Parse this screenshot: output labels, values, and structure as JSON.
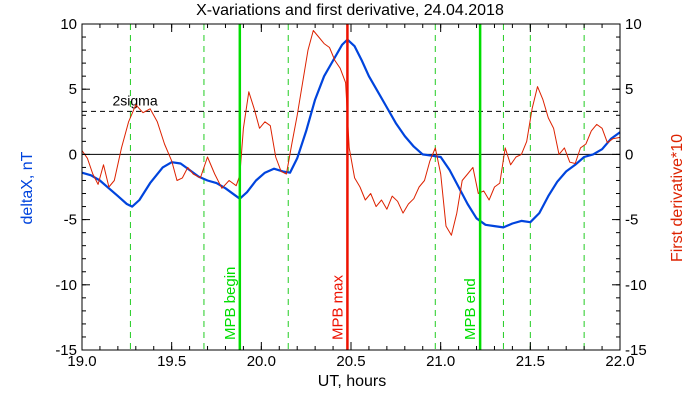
{
  "chart_data": {
    "type": "line",
    "title": "X-variations and first derivative, 24.04.2018",
    "xlabel": "UT, hours",
    "ylabel_left": "deltaX, nT",
    "ylabel_right": "First derivative*10",
    "xlim": [
      19.0,
      22.0
    ],
    "ylim_left": [
      -15,
      10
    ],
    "ylim_right": [
      -15,
      10
    ],
    "x_ticks": [
      "19.0",
      "19.5",
      "20.0",
      "20.5",
      "21.0",
      "21.5",
      "22.0"
    ],
    "x_tick_values": [
      19.0,
      19.5,
      20.0,
      20.5,
      21.0,
      21.5,
      22.0
    ],
    "y_ticks": [
      "-15",
      "-10",
      "-5",
      "0",
      "5",
      "10"
    ],
    "y_tick_values": [
      -15,
      -10,
      -5,
      0,
      5,
      10
    ],
    "grid": false,
    "threshold": {
      "label": "2sigma",
      "value": 3.3,
      "style": "dashed"
    },
    "zero_line": 0,
    "dashed_vlines": [
      19.27,
      19.68,
      20.15,
      20.97,
      21.35,
      21.5,
      21.8
    ],
    "markers": [
      {
        "label": "MPB begin",
        "x": 19.88,
        "color": "#00dd00"
      },
      {
        "label": "MPB max",
        "x": 20.48,
        "color": "#ee1100"
      },
      {
        "label": "MPB end",
        "x": 21.22,
        "color": "#00dd00"
      }
    ],
    "series": [
      {
        "name": "deltaX, nT",
        "axis": "left",
        "color": "#0044dd",
        "x": [
          19.0,
          19.05,
          19.1,
          19.15,
          19.2,
          19.25,
          19.28,
          19.32,
          19.38,
          19.45,
          19.5,
          19.55,
          19.6,
          19.65,
          19.7,
          19.75,
          19.8,
          19.85,
          19.88,
          19.92,
          19.97,
          20.02,
          20.07,
          20.12,
          20.16,
          20.2,
          20.25,
          20.3,
          20.35,
          20.4,
          20.45,
          20.48,
          20.52,
          20.56,
          20.6,
          20.65,
          20.7,
          20.75,
          20.8,
          20.85,
          20.9,
          20.95,
          21.0,
          21.05,
          21.1,
          21.15,
          21.2,
          21.25,
          21.3,
          21.35,
          21.4,
          21.45,
          21.5,
          21.55,
          21.6,
          21.65,
          21.7,
          21.75,
          21.8,
          21.85,
          21.9,
          21.95,
          22.0
        ],
        "y": [
          -1.4,
          -1.6,
          -2.0,
          -2.6,
          -3.2,
          -3.8,
          -4.0,
          -3.5,
          -2.2,
          -1.0,
          -0.6,
          -0.7,
          -1.2,
          -1.7,
          -2.0,
          -2.2,
          -2.6,
          -3.1,
          -3.4,
          -2.9,
          -2.0,
          -1.4,
          -1.1,
          -1.3,
          -1.4,
          -0.3,
          1.8,
          4.2,
          6.0,
          7.2,
          8.4,
          8.8,
          8.3,
          7.2,
          6.0,
          4.8,
          3.6,
          2.4,
          1.4,
          0.6,
          0.0,
          -0.1,
          -0.2,
          -1.2,
          -2.5,
          -3.8,
          -4.9,
          -5.4,
          -5.5,
          -5.6,
          -5.3,
          -5.1,
          -5.2,
          -4.5,
          -3.2,
          -2.1,
          -1.3,
          -0.8,
          -0.2,
          0.0,
          0.4,
          1.2,
          1.7
        ]
      },
      {
        "name": "First derivative*10",
        "axis": "right",
        "color": "#dd2200",
        "x": [
          19.0,
          19.03,
          19.06,
          19.09,
          19.12,
          19.15,
          19.18,
          19.22,
          19.26,
          19.3,
          19.34,
          19.38,
          19.42,
          19.46,
          19.5,
          19.53,
          19.56,
          19.59,
          19.62,
          19.66,
          19.7,
          19.74,
          19.78,
          19.82,
          19.86,
          19.88,
          19.9,
          19.93,
          19.96,
          19.99,
          20.02,
          20.05,
          20.08,
          20.11,
          20.14,
          20.17,
          20.2,
          20.23,
          20.26,
          20.29,
          20.32,
          20.35,
          20.38,
          20.41,
          20.44,
          20.47,
          20.49,
          20.52,
          20.55,
          20.58,
          20.61,
          20.64,
          20.67,
          20.7,
          20.73,
          20.76,
          20.79,
          20.82,
          20.85,
          20.88,
          20.91,
          20.94,
          20.97,
          21.0,
          21.03,
          21.06,
          21.09,
          21.12,
          21.15,
          21.18,
          21.21,
          21.24,
          21.27,
          21.3,
          21.33,
          21.36,
          21.39,
          21.42,
          21.45,
          21.48,
          21.51,
          21.54,
          21.57,
          21.6,
          21.63,
          21.66,
          21.69,
          21.72,
          21.75,
          21.78,
          21.81,
          21.84,
          21.87,
          21.9,
          21.93,
          21.96,
          22.0
        ],
        "y": [
          0.3,
          -0.3,
          -1.5,
          -2.3,
          -0.8,
          -2.5,
          -2.0,
          0.5,
          2.5,
          3.8,
          3.2,
          3.5,
          2.5,
          0.8,
          -0.5,
          -2.0,
          -1.8,
          -1.0,
          -1.5,
          -1.8,
          -0.2,
          -1.5,
          -2.6,
          -2.0,
          -2.4,
          -1.6,
          2.0,
          4.8,
          3.5,
          2.0,
          2.5,
          2.2,
          -0.2,
          -1.3,
          -1.5,
          0.8,
          3.0,
          5.5,
          8.0,
          9.5,
          9.0,
          8.5,
          8.2,
          7.2,
          6.6,
          5.5,
          0.5,
          -1.8,
          -2.5,
          -3.5,
          -3.0,
          -4.0,
          -3.5,
          -4.2,
          -3.2,
          -3.6,
          -4.5,
          -3.8,
          -3.4,
          -2.5,
          -2.0,
          -0.5,
          0.5,
          -1.5,
          -5.5,
          -6.2,
          -4.5,
          -2.0,
          -1.5,
          -1.0,
          -3.0,
          -2.8,
          -3.5,
          -2.5,
          -2.2,
          0.5,
          -0.8,
          -0.2,
          0.0,
          1.0,
          3.5,
          5.2,
          4.2,
          2.8,
          2.0,
          0.0,
          0.5,
          -0.6,
          -0.7,
          0.5,
          0.8,
          1.8,
          2.3,
          2.0,
          0.9,
          1.2,
          1.3
        ]
      }
    ]
  }
}
